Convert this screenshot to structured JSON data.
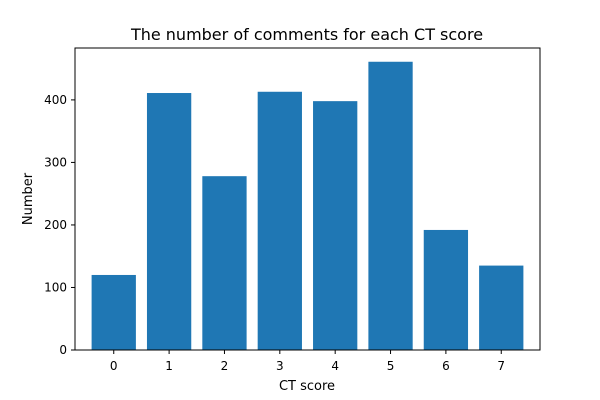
{
  "chart_data": {
    "type": "bar",
    "title": "The number of comments for each CT score",
    "xlabel": "CT score",
    "ylabel": "Number",
    "categories": [
      "0",
      "1",
      "2",
      "3",
      "4",
      "5",
      "6",
      "7"
    ],
    "values": [
      120,
      411,
      278,
      413,
      398,
      461,
      192,
      135
    ],
    "ylim": [
      0,
      483
    ],
    "yticks": [
      0,
      100,
      200,
      300,
      400
    ],
    "grid": false,
    "bar_color": "#1f77b4"
  }
}
